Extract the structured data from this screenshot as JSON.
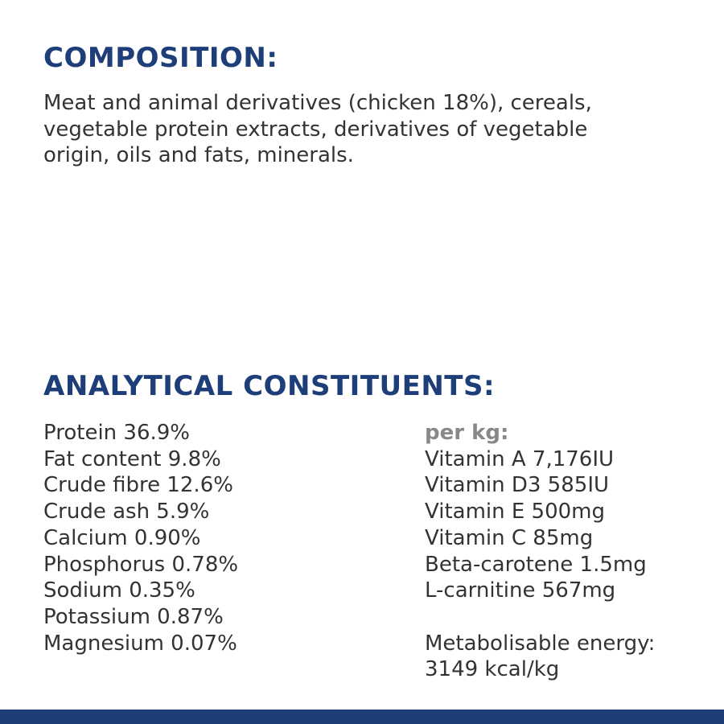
{
  "composition": {
    "title": "COMPOSITION:",
    "lines": [
      "Meat and animal derivatives (chicken 18%), cereals,",
      "vegetable protein extracts, derivatives of vegetable",
      "origin, oils and fats, minerals."
    ]
  },
  "analytical": {
    "title": "ANALYTICAL CONSTITUENTS:",
    "left": [
      "Protein 36.9%",
      "Fat content 9.8%",
      "Crude fibre 12.6%",
      "Crude ash 5.9%",
      "Calcium 0.90%",
      "Phosphorus 0.78%",
      "Sodium 0.35%",
      "Potassium 0.87%",
      "Magnesium 0.07%"
    ],
    "per_kg": "per kg:",
    "right": [
      "Vitamin A 7,176IU",
      "Vitamin D3 585IU",
      "Vitamin E 500mg",
      "Vitamin C 85mg",
      "Beta-carotene 1.5mg",
      "L-carnitine 567mg"
    ],
    "energy": [
      "Metabolisable energy:",
      "3149 kcal/kg"
    ]
  }
}
